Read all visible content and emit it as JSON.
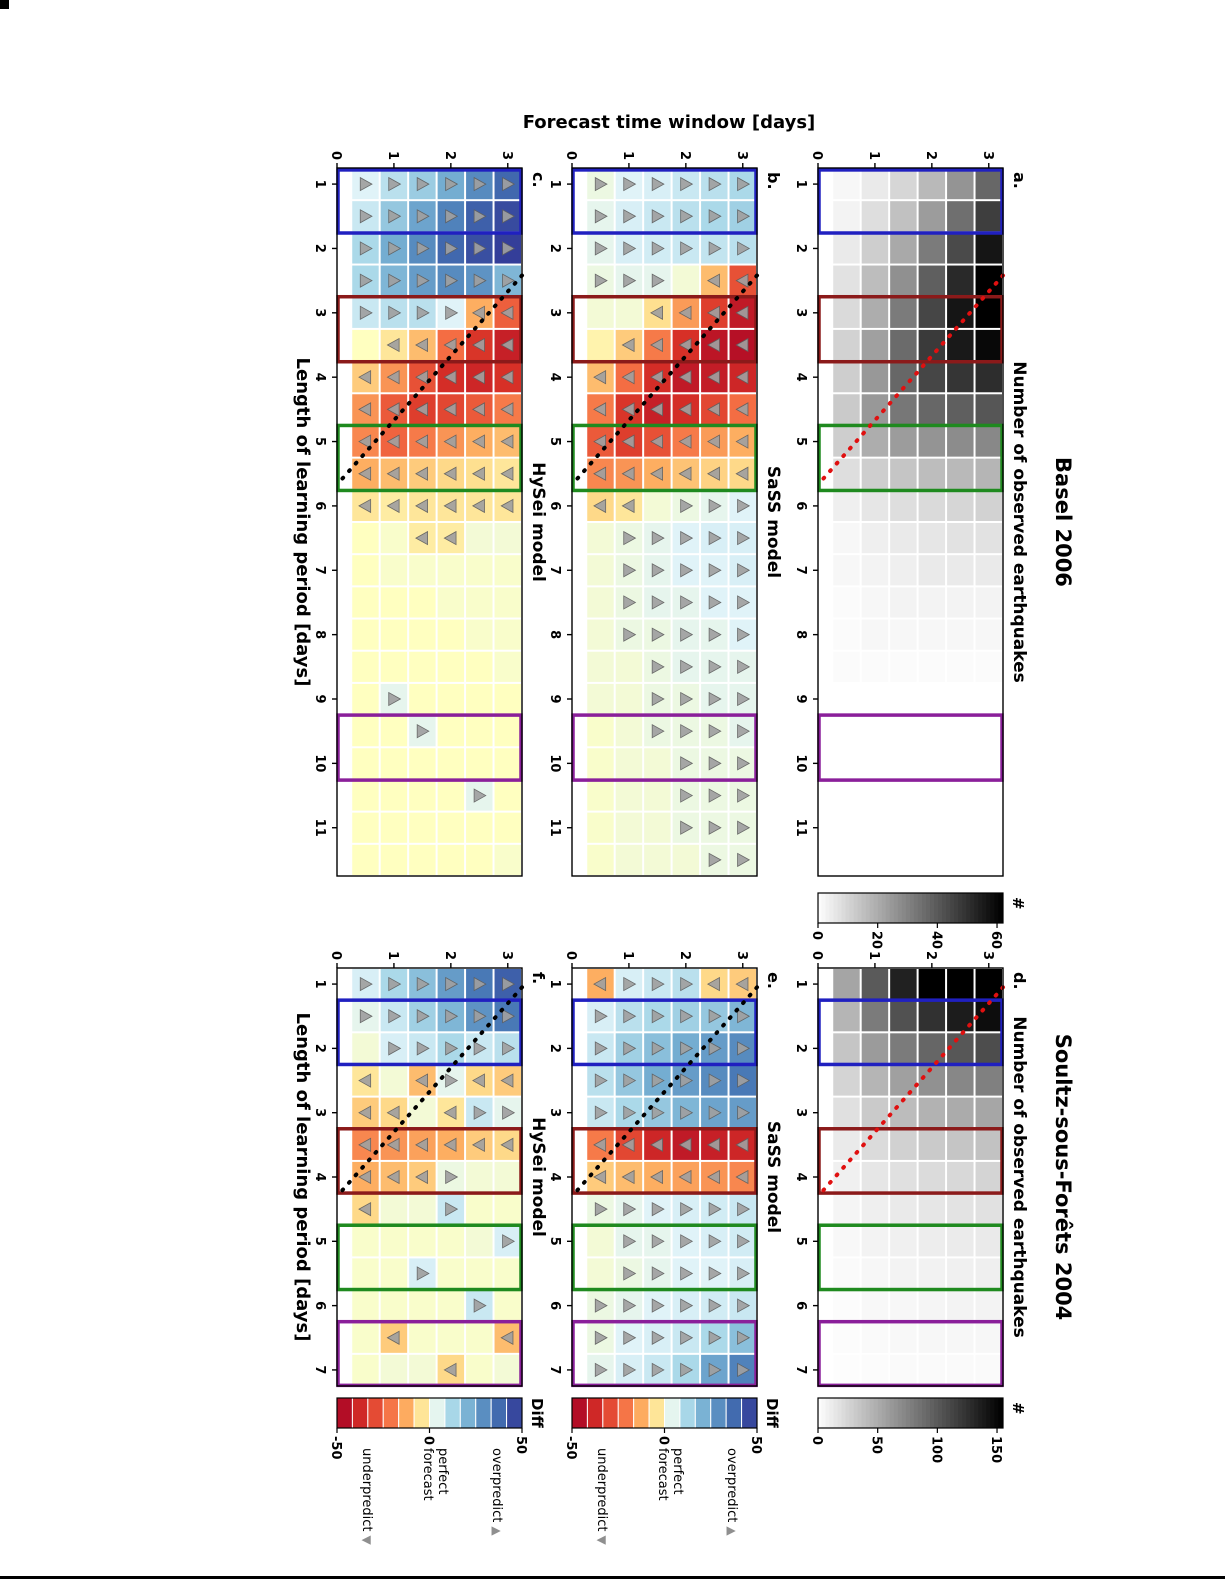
{
  "figure": {
    "ylabel": "Forecast time window [days]",
    "xlabel": "Length of learning period [days]",
    "groups": [
      {
        "title": "Basel 2006"
      },
      {
        "title": "Soultz-sous-Forêts 2004"
      }
    ]
  },
  "legend": {
    "overpredict": "overpredict",
    "perfect_line1": "perfect",
    "perfect_line2": "forecast",
    "underpredict": "underpredict",
    "up_marker": "▲",
    "down_marker": "▼"
  },
  "colors": {
    "blue": "#2020c0",
    "darkred": "#8b1a1a",
    "green": "#1f8a1f",
    "purple": "#8a1f9a",
    "dash_red": "#e01010",
    "dash_black": "#000000",
    "marker_fill": "#a0a0a0",
    "marker_edge": "#5f5f5f",
    "diff_stops": [
      [
        -50,
        "#a50026"
      ],
      [
        -35,
        "#d73027"
      ],
      [
        -22,
        "#f46d43"
      ],
      [
        -12,
        "#fdae61"
      ],
      [
        -5,
        "#fee090"
      ],
      [
        0,
        "#ffffc0"
      ],
      [
        5,
        "#e0f3f8"
      ],
      [
        12,
        "#abd9e9"
      ],
      [
        22,
        "#74add1"
      ],
      [
        35,
        "#4575b4"
      ],
      [
        50,
        "#313695"
      ]
    ]
  },
  "colorbars": [
    {
      "id": "cb-a",
      "type": "count",
      "scale_max": 62,
      "ticks": [
        0,
        20,
        40,
        60
      ],
      "label": "#"
    },
    {
      "id": "cb-d",
      "type": "count",
      "scale_max": 155,
      "ticks": [
        0,
        50,
        100,
        150
      ],
      "label": "#"
    },
    {
      "id": "cb-e",
      "type": "diff",
      "range": [
        -50,
        50
      ],
      "ticks": [
        -50,
        0,
        50
      ],
      "label": "Diff"
    },
    {
      "id": "cb-f",
      "type": "diff",
      "range": [
        -50,
        50
      ],
      "ticks": [
        -50,
        0,
        50
      ],
      "label": "Diff"
    }
  ],
  "chart_data": [
    {
      "id": "a",
      "label": "a.",
      "type": "heatmap",
      "colormap": "gray",
      "vmax": 62,
      "group": "Basel 2006",
      "title": "Number of observed earthquakes",
      "xlim": [
        0.75,
        11.75
      ],
      "ylim": [
        0,
        3.25
      ],
      "x_ticks": [
        1,
        2,
        3,
        4,
        5,
        6,
        7,
        8,
        9,
        10,
        11
      ],
      "y_ticks": [
        0,
        1,
        2,
        3
      ],
      "learning": [
        1,
        1.5,
        2,
        2.5,
        3,
        3.5,
        4,
        4.5,
        5,
        5.5,
        6,
        6.5,
        7,
        7.5,
        8,
        8.5,
        9,
        9.5,
        10,
        10.5,
        11,
        11.5
      ],
      "forecast": [
        3,
        2.5,
        2,
        1.5,
        1,
        0.5
      ],
      "rows": [
        [
          37,
          47,
          57,
          64,
          65,
          60,
          51,
          41,
          29,
          18,
          11,
          7,
          5,
          3,
          2,
          1,
          0,
          0,
          0,
          0,
          0,
          0
        ],
        [
          26,
          35,
          44,
          52,
          57,
          56,
          49,
          39,
          28,
          17,
          10,
          7,
          5,
          3,
          2,
          1,
          0,
          0,
          0,
          0,
          0,
          0
        ],
        [
          17,
          24,
          32,
          39,
          45,
          48,
          45,
          37,
          26,
          16,
          9,
          6,
          5,
          3,
          2,
          1,
          0,
          0,
          0,
          0,
          0,
          0
        ],
        [
          10,
          15,
          21,
          27,
          32,
          36,
          37,
          33,
          24,
          14,
          8,
          5,
          4,
          3,
          2,
          1,
          0,
          0,
          0,
          0,
          0,
          0
        ],
        [
          5,
          8,
          12,
          16,
          20,
          23,
          25,
          25,
          20,
          12,
          6,
          4,
          3,
          2,
          2,
          1,
          0,
          0,
          0,
          0,
          0,
          0
        ],
        [
          2,
          3,
          5,
          7,
          9,
          11,
          12,
          13,
          12,
          8,
          4,
          2,
          2,
          1,
          1,
          1,
          0,
          0,
          0,
          0,
          0,
          0
        ]
      ],
      "dash_line": {
        "color": "#e01010",
        "x_top": 2.42,
        "x_bottom": 5.67
      },
      "boxes": [
        {
          "color": "blue",
          "x1": 0.78,
          "x2": 1.76
        },
        {
          "color": "darkred",
          "x1": 2.75,
          "x2": 3.76
        },
        {
          "color": "green",
          "x1": 4.75,
          "x2": 5.76
        },
        {
          "color": "purple",
          "x1": 9.25,
          "x2": 10.26
        }
      ]
    },
    {
      "id": "b",
      "label": "b.",
      "type": "heatmap",
      "colormap": "diff",
      "vmax": 50,
      "group": "Basel 2006",
      "title": "SaSS model",
      "xlim": [
        0.75,
        11.75
      ],
      "ylim": [
        0,
        3.25
      ],
      "x_ticks": [
        1,
        2,
        3,
        4,
        5,
        6,
        7,
        8,
        9,
        10,
        11
      ],
      "y_ticks": [
        0,
        1,
        2,
        3
      ],
      "learning": [
        1,
        1.5,
        2,
        2.5,
        3,
        3.5,
        4,
        4.5,
        5,
        5.5,
        6,
        6.5,
        7,
        7.5,
        8,
        8.5,
        9,
        9.5,
        10,
        10.5,
        11,
        11.5
      ],
      "forecast": [
        3,
        2.5,
        2,
        1.5,
        1,
        0.5
      ],
      "rows": [
        [
          12,
          14,
          10,
          -28,
          -42,
          -45,
          -38,
          -22,
          -12,
          -6,
          5,
          6,
          6,
          5,
          5,
          4,
          4,
          4,
          3,
          3,
          3,
          3
        ],
        [
          10,
          12,
          9,
          -10,
          -32,
          -43,
          -41,
          -30,
          -15,
          -7,
          4,
          6,
          5,
          5,
          4,
          4,
          4,
          3,
          3,
          3,
          3,
          3
        ],
        [
          8,
          10,
          8,
          2,
          -15,
          -35,
          -42,
          -36,
          -20,
          -9,
          3,
          5,
          5,
          4,
          4,
          4,
          3,
          3,
          3,
          3,
          3,
          2
        ],
        [
          6,
          8,
          7,
          4,
          -5,
          -20,
          -36,
          -40,
          -28,
          -12,
          2,
          4,
          4,
          4,
          3,
          3,
          3,
          3,
          2,
          2,
          2,
          2
        ],
        [
          5,
          6,
          6,
          4,
          2,
          -8,
          -22,
          -34,
          -32,
          -16,
          -4,
          3,
          3,
          3,
          3,
          2,
          2,
          2,
          2,
          2,
          2,
          2
        ],
        [
          3,
          4,
          4,
          3,
          2,
          -2,
          -10,
          -20,
          -26,
          -18,
          -6,
          2,
          2,
          2,
          2,
          2,
          2,
          1,
          1,
          1,
          1,
          1
        ]
      ],
      "dash_line": {
        "color": "#000000",
        "x_top": 2.42,
        "x_bottom": 5.67
      },
      "boxes": [
        {
          "color": "blue",
          "x1": 0.78,
          "x2": 1.76
        },
        {
          "color": "darkred",
          "x1": 2.75,
          "x2": 3.76
        },
        {
          "color": "green",
          "x1": 4.75,
          "x2": 5.76
        },
        {
          "color": "purple",
          "x1": 9.25,
          "x2": 10.26
        }
      ]
    },
    {
      "id": "c",
      "label": "c.",
      "type": "heatmap",
      "colormap": "diff",
      "vmax": 50,
      "group": "Basel 2006",
      "title": "HySei model",
      "xlim": [
        0.75,
        11.75
      ],
      "ylim": [
        0,
        3.25
      ],
      "x_ticks": [
        1,
        2,
        3,
        4,
        5,
        6,
        7,
        8,
        9,
        10,
        11
      ],
      "y_ticks": [
        0,
        1,
        2,
        3
      ],
      "learning": [
        1,
        1.5,
        2,
        2.5,
        3,
        3.5,
        4,
        4.5,
        5,
        5.5,
        6,
        6.5,
        7,
        7.5,
        8,
        8.5,
        9,
        9.5,
        10,
        10.5,
        11,
        11.5
      ],
      "forecast": [
        3,
        2.5,
        2,
        1.5,
        1,
        0.5
      ],
      "rows": [
        [
          38,
          45,
          48,
          20,
          -25,
          -40,
          -35,
          -20,
          -10,
          -4,
          -4,
          2,
          1,
          1,
          1,
          1,
          0,
          0,
          0,
          0,
          0,
          1
        ],
        [
          30,
          40,
          44,
          28,
          -12,
          -34,
          -38,
          -26,
          -12,
          -5,
          -4,
          2,
          1,
          1,
          1,
          0,
          0,
          0,
          0,
          4,
          0,
          0
        ],
        [
          22,
          32,
          38,
          30,
          5,
          -22,
          -36,
          -30,
          -16,
          -6,
          -4,
          -3,
          1,
          1,
          0,
          0,
          0,
          0,
          0,
          0,
          0,
          0
        ],
        [
          15,
          24,
          30,
          26,
          10,
          -10,
          -28,
          -32,
          -20,
          -8,
          -4,
          -3,
          1,
          0,
          0,
          0,
          0,
          4,
          0,
          0,
          0,
          0
        ],
        [
          10,
          16,
          22,
          20,
          10,
          -4,
          -16,
          -26,
          -24,
          -10,
          -3,
          1,
          1,
          0,
          0,
          0,
          4,
          0,
          0,
          0,
          0,
          0
        ],
        [
          5,
          8,
          12,
          12,
          8,
          0,
          -8,
          -16,
          -18,
          -12,
          -4,
          0,
          0,
          0,
          0,
          0,
          0,
          0,
          0,
          0,
          0,
          0
        ]
      ],
      "dash_line": {
        "color": "#000000",
        "x_top": 2.42,
        "x_bottom": 5.67
      },
      "boxes": [
        {
          "color": "blue",
          "x1": 0.78,
          "x2": 1.76
        },
        {
          "color": "darkred",
          "x1": 2.75,
          "x2": 3.76
        },
        {
          "color": "green",
          "x1": 4.75,
          "x2": 5.76
        },
        {
          "color": "purple",
          "x1": 9.25,
          "x2": 10.26
        }
      ]
    },
    {
      "id": "d",
      "label": "d.",
      "type": "heatmap",
      "colormap": "gray",
      "vmax": 155,
      "group": "Soultz-sous-Forêts 2004",
      "title": "Number of observed earthquakes",
      "xlim": [
        0.75,
        7.25
      ],
      "ylim": [
        0,
        3.25
      ],
      "x_ticks": [
        1,
        2,
        3,
        4,
        5,
        6,
        7
      ],
      "y_ticks": [
        0,
        1,
        2,
        3
      ],
      "learning": [
        1,
        1.5,
        2,
        2.5,
        3,
        3.5,
        4,
        4.5,
        5,
        5.5,
        6,
        6.5,
        7
      ],
      "forecast": [
        3,
        2.5,
        2,
        1.5,
        1,
        0.5
      ],
      "rows": [
        [
          193,
          147,
          108,
          77,
          54,
          37,
          26,
          18,
          13,
          10,
          7,
          5,
          3
        ],
        [
          180,
          138,
          102,
          73,
          51,
          35,
          24,
          17,
          12,
          9,
          7,
          5,
          3
        ],
        [
          161,
          125,
          93,
          67,
          47,
          32,
          22,
          15,
          11,
          8,
          6,
          5,
          3
        ],
        [
          135,
          106,
          80,
          58,
          41,
          28,
          19,
          13,
          9,
          7,
          5,
          4,
          3
        ],
        [
          100,
          80,
          61,
          45,
          32,
          22,
          15,
          10,
          7,
          5,
          4,
          3,
          2
        ],
        [
          55,
          45,
          35,
          26,
          19,
          13,
          9,
          6,
          4,
          3,
          2,
          2,
          1
        ]
      ],
      "dash_line": {
        "color": "#e01010",
        "x_top": 1.05,
        "x_bottom": 4.3
      },
      "boxes": [
        {
          "color": "blue",
          "x1": 1.25,
          "x2": 2.25
        },
        {
          "color": "darkred",
          "x1": 3.25,
          "x2": 4.25
        },
        {
          "color": "green",
          "x1": 4.75,
          "x2": 5.75
        },
        {
          "color": "purple",
          "x1": 6.25,
          "x2": 7.24
        }
      ]
    },
    {
      "id": "e",
      "label": "e.",
      "type": "heatmap",
      "colormap": "diff",
      "vmax": 50,
      "group": "Soultz-sous-Forêts 2004",
      "title": "SaSS model",
      "xlim": [
        0.75,
        7.25
      ],
      "ylim": [
        0,
        3.25
      ],
      "x_ticks": [
        1,
        2,
        3,
        4,
        5,
        6,
        7
      ],
      "y_ticks": [
        0,
        1,
        2,
        3
      ],
      "learning": [
        1,
        1.5,
        2,
        2.5,
        3,
        3.5,
        4,
        4.5,
        5,
        5.5,
        6,
        6.5,
        7
      ],
      "forecast": [
        3,
        2.5,
        2,
        1.5,
        1,
        0.5
      ],
      "rows": [
        [
          -8,
          20,
          30,
          34,
          26,
          -38,
          -18,
          8,
          7,
          6,
          8,
          18,
          32
        ],
        [
          -6,
          16,
          26,
          30,
          24,
          -40,
          -16,
          7,
          6,
          5,
          7,
          12,
          24
        ],
        [
          10,
          14,
          22,
          26,
          20,
          -42,
          -14,
          6,
          5,
          5,
          6,
          8,
          12
        ],
        [
          8,
          12,
          18,
          22,
          16,
          -38,
          -12,
          5,
          4,
          4,
          5,
          6,
          8
        ],
        [
          6,
          10,
          14,
          16,
          12,
          -30,
          -10,
          4,
          4,
          3,
          4,
          5,
          6
        ],
        [
          -12,
          6,
          8,
          10,
          8,
          -20,
          -8,
          3,
          2,
          2,
          3,
          3,
          4
        ]
      ],
      "dash_line": {
        "color": "#000000",
        "x_top": 1.05,
        "x_bottom": 4.3
      },
      "boxes": [
        {
          "color": "blue",
          "x1": 1.25,
          "x2": 2.25
        },
        {
          "color": "darkred",
          "x1": 3.25,
          "x2": 4.25
        },
        {
          "color": "green",
          "x1": 4.75,
          "x2": 5.75
        },
        {
          "color": "purple",
          "x1": 6.25,
          "x2": 7.24
        }
      ]
    },
    {
      "id": "f",
      "label": "f.",
      "type": "heatmap",
      "colormap": "diff",
      "vmax": 50,
      "group": "Soultz-sous-Forêts 2004",
      "title": "HySei model",
      "xlim": [
        0.75,
        7.25
      ],
      "ylim": [
        0,
        3.25
      ],
      "x_ticks": [
        1,
        2,
        3,
        4,
        5,
        6,
        7
      ],
      "y_ticks": [
        0,
        1,
        2,
        3
      ],
      "learning": [
        1,
        1.5,
        2,
        2.5,
        3,
        3.5,
        4,
        4.5,
        5,
        5.5,
        6,
        6.5,
        7
      ],
      "forecast": [
        3,
        2.5,
        2,
        1.5,
        1,
        0.5
      ],
      "rows": [
        [
          40,
          34,
          10,
          -8,
          4,
          -6,
          2,
          1,
          6,
          1,
          1,
          -10,
          2
        ],
        [
          34,
          28,
          8,
          -6,
          8,
          -8,
          2,
          1,
          2,
          1,
          8,
          1,
          1
        ],
        [
          26,
          20,
          12,
          4,
          -4,
          -12,
          3,
          8,
          1,
          1,
          1,
          1,
          -6
        ],
        [
          18,
          14,
          8,
          -10,
          2,
          -14,
          -8,
          2,
          1,
          6,
          1,
          1,
          2
        ],
        [
          12,
          8,
          6,
          2,
          -6,
          -16,
          -10,
          2,
          1,
          1,
          1,
          -8,
          2
        ],
        [
          6,
          4,
          2,
          -4,
          -8,
          -18,
          -12,
          -6,
          1,
          1,
          1,
          1,
          1
        ]
      ],
      "dash_line": {
        "color": "#000000",
        "x_top": 1.05,
        "x_bottom": 4.3
      },
      "boxes": [
        {
          "color": "blue",
          "x1": 1.25,
          "x2": 2.25
        },
        {
          "color": "darkred",
          "x1": 3.25,
          "x2": 4.25
        },
        {
          "color": "green",
          "x1": 4.75,
          "x2": 5.75
        },
        {
          "color": "purple",
          "x1": 6.25,
          "x2": 7.24
        }
      ]
    }
  ]
}
